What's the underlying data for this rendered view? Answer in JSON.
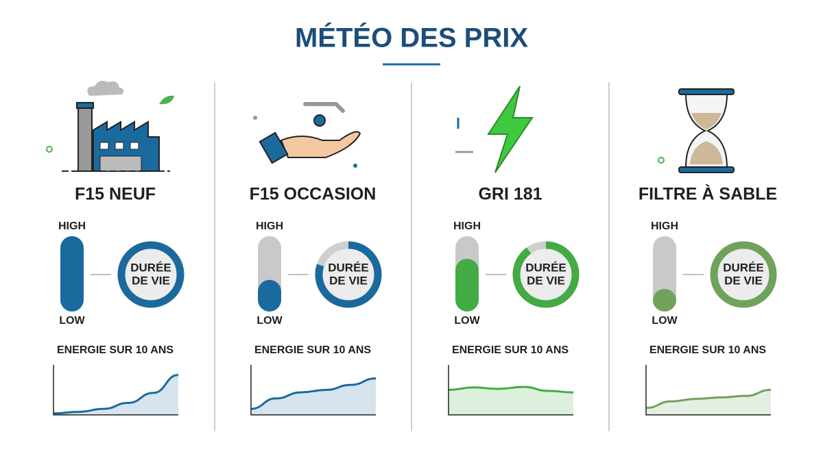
{
  "title": "MÉTÉO DES PRIX",
  "columns": [
    {
      "name": "F15 NEUF",
      "high": "HIGH",
      "low": "LOW",
      "level": 100,
      "ring": 100,
      "ring_label": [
        "DURÉE",
        "DE VIE"
      ],
      "energy_label": "ENERGIE SUR 10 ANS",
      "color": "#1b6a9e",
      "curve": [
        3,
        6,
        12,
        24,
        44,
        80
      ]
    },
    {
      "name": "F15 OCCASION",
      "high": "HIGH",
      "low": "LOW",
      "level": 42,
      "ring": 80,
      "ring_label": [
        "DURÉE",
        "DE VIE"
      ],
      "energy_label": "ENERGIE SUR 10 ANS",
      "color": "#1b6a9e",
      "curve": [
        12,
        33,
        45,
        50,
        60,
        73
      ]
    },
    {
      "name": "GRI 181",
      "high": "HIGH",
      "low": "LOW",
      "level": 70,
      "ring": 90,
      "ring_label": [
        "DURÉE",
        "DE VIE"
      ],
      "energy_label": "ENERGIE SUR 10 ANS",
      "color": "#44aa44",
      "curve": [
        50,
        55,
        52,
        56,
        48,
        45
      ]
    },
    {
      "name": "FILTRE À SABLE",
      "high": "HIGH",
      "low": "LOW",
      "level": 30,
      "ring": 100,
      "ring_label": [
        "DURÉE",
        "DE VIE"
      ],
      "energy_label": "ENERGIE SUR 10 ANS",
      "color": "#6fa35c",
      "curve": [
        14,
        27,
        32,
        35,
        38,
        50
      ]
    }
  ]
}
